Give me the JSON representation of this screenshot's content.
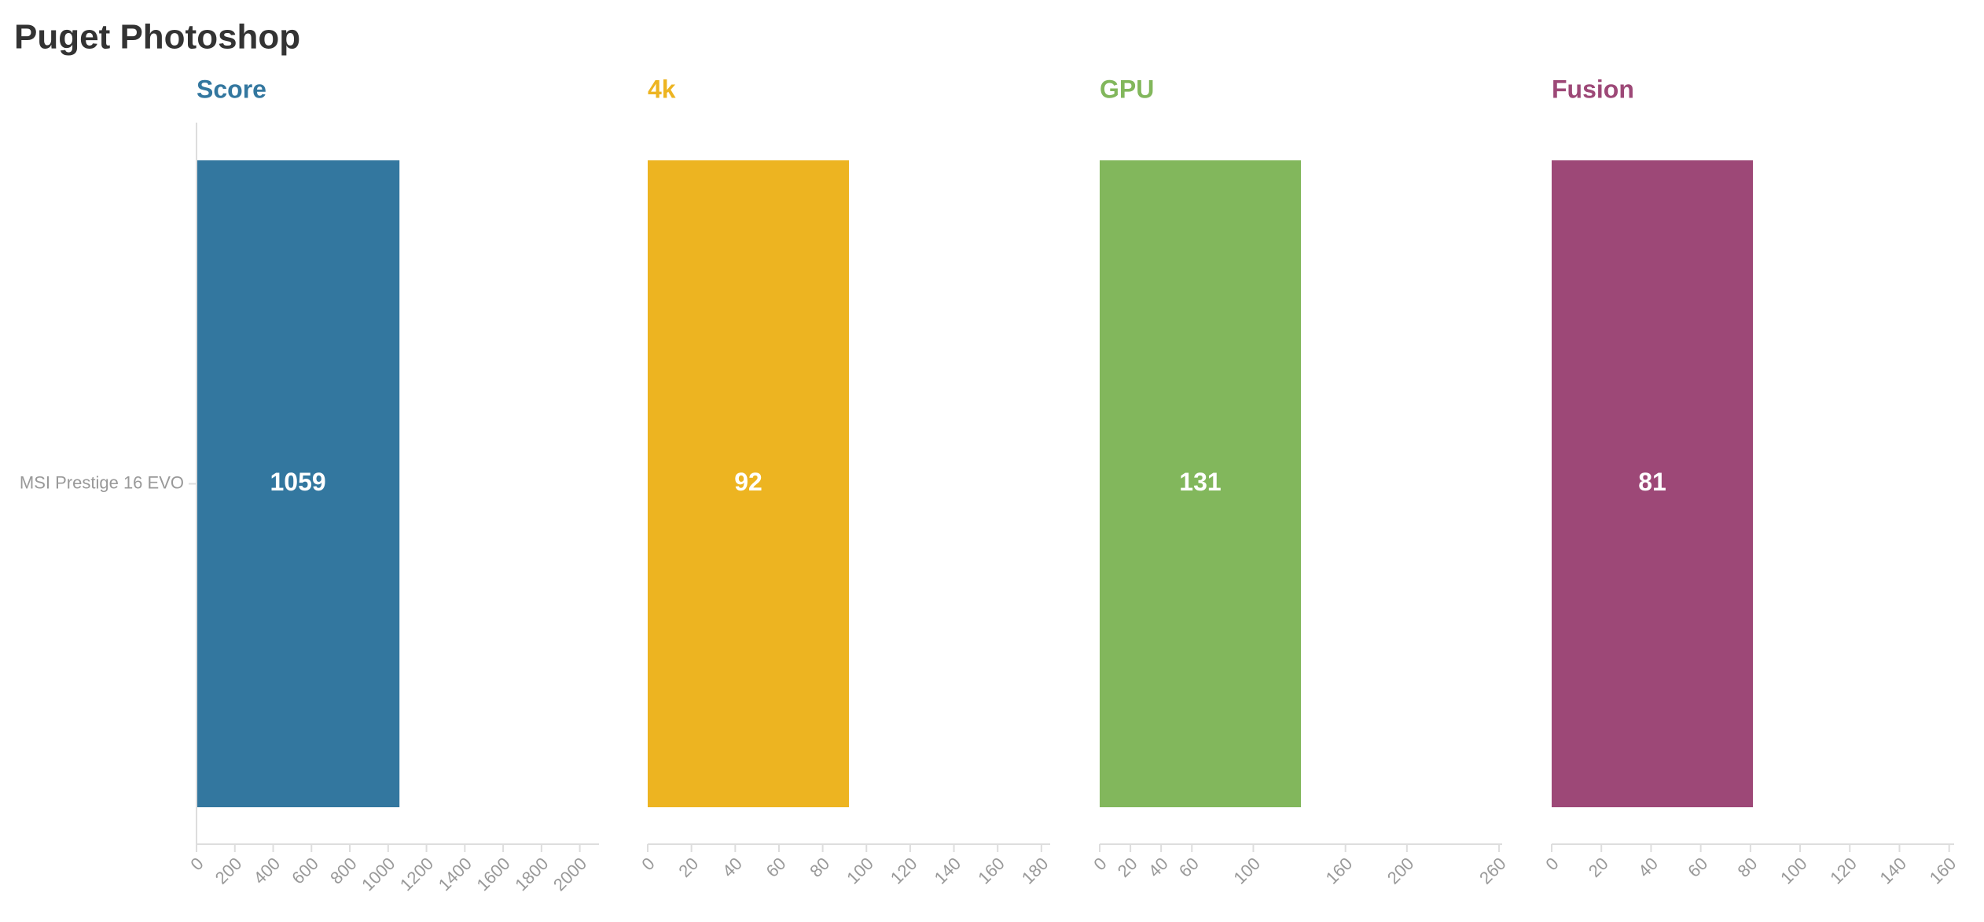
{
  "title": "Puget Photoshop",
  "chart_data": [
    {
      "type": "bar",
      "title": "Score",
      "categories": [
        "MSI Prestige 16 EVO"
      ],
      "values": [
        1059
      ],
      "color": "#33779f",
      "xlim": [
        0,
        2100
      ],
      "xticks": [
        0,
        200,
        400,
        600,
        800,
        1000,
        1200,
        1400,
        1600,
        1800,
        2000
      ]
    },
    {
      "type": "bar",
      "title": "4k",
      "values": [
        92
      ],
      "color": "#edb421",
      "xlim": [
        0,
        184
      ],
      "xticks": [
        0,
        20,
        40,
        60,
        80,
        100,
        120,
        140,
        160,
        180
      ]
    },
    {
      "type": "bar",
      "title": "GPU",
      "values": [
        131
      ],
      "color": "#82b75c",
      "xlim": [
        0,
        262
      ],
      "xticks": [
        0,
        20,
        40,
        60,
        100,
        160,
        200,
        260
      ]
    },
    {
      "type": "bar",
      "title": "Fusion",
      "values": [
        81
      ],
      "color": "#9d4877",
      "xlim": [
        0,
        162
      ],
      "xticks": [
        0,
        20,
        40,
        60,
        80,
        100,
        120,
        140,
        160
      ]
    }
  ]
}
